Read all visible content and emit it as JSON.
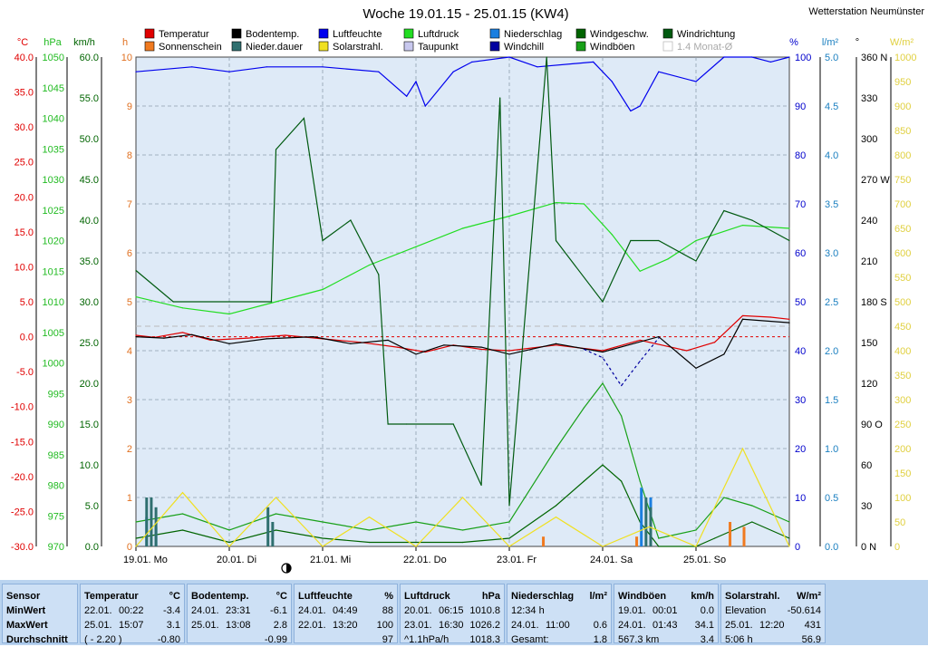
{
  "header": {
    "title": "Woche 19.01.15 - 25.01.15 (KW4)",
    "station": "Wetterstation Neumünster"
  },
  "legend": [
    {
      "label": "Temperatur",
      "color": "#e00000",
      "checked": true
    },
    {
      "label": "Bodentemp.",
      "color": "#000000",
      "checked": true
    },
    {
      "label": "Luftfeuchte",
      "color": "#0000ee",
      "checked": true
    },
    {
      "label": "Luftdruck",
      "color": "#22dd22",
      "checked": true
    },
    {
      "label": "Niederschlag",
      "color": "#1a7fe0",
      "checked": true
    },
    {
      "label": "Windgeschw.",
      "color": "#006400",
      "checked": true
    },
    {
      "label": "Windrichtung",
      "color": "#005a10",
      "checked": true
    },
    {
      "label": "Sonnenschein",
      "color": "#f07a20",
      "checked": true
    },
    {
      "label": "Nieder.dauer",
      "color": "#2f6f6f",
      "checked": true
    },
    {
      "label": "Solarstrahl.",
      "color": "#f0e020",
      "checked": true
    },
    {
      "label": "Taupunkt",
      "color": "#c8c8ee",
      "checked": true
    },
    {
      "label": "Windchill",
      "color": "#0000a0",
      "checked": true
    },
    {
      "label": "Windböen",
      "color": "#18a018",
      "checked": true
    },
    {
      "label": "1.4 Monat-Ø",
      "color": "#bbbbbb",
      "checked": false
    }
  ],
  "axes": {
    "left": [
      {
        "unit": "°C",
        "color": "#e00000",
        "ticks": [
          "40.0",
          "35.0",
          "30.0",
          "25.0",
          "20.0",
          "15.0",
          "10.0",
          "5.0",
          "0.0",
          "-5.0",
          "-10.0",
          "-15.0",
          "-20.0",
          "-25.0",
          "-30.0"
        ]
      },
      {
        "unit": "hPa",
        "color": "#22bb22",
        "ticks": [
          "1050",
          "1045",
          "1040",
          "1035",
          "1030",
          "1025",
          "1020",
          "1015",
          "1010",
          "1005",
          "1000",
          "995",
          "990",
          "985",
          "980",
          "975",
          "970"
        ]
      },
      {
        "unit": "km/h",
        "color": "#006400",
        "ticks": [
          "60.0",
          "55.0",
          "50.0",
          "45.0",
          "40.0",
          "35.0",
          "30.0",
          "25.0",
          "20.0",
          "15.0",
          "10.0",
          "5.0",
          "0.0"
        ]
      },
      {
        "unit": "h",
        "color": "#e07020",
        "ticks": [
          "10",
          "9",
          "8",
          "7",
          "6",
          "5",
          "4",
          "3",
          "2",
          "1",
          "0"
        ]
      }
    ],
    "right": [
      {
        "unit": "%",
        "color": "#0000cc",
        "ticks": [
          "100",
          "90",
          "80",
          "70",
          "60",
          "50",
          "40",
          "30",
          "20",
          "10",
          "0"
        ]
      },
      {
        "unit": "l/m²",
        "color": "#1a7fc0",
        "ticks": [
          "5.0",
          "4.5",
          "4.0",
          "3.5",
          "3.0",
          "2.5",
          "2.0",
          "1.5",
          "1.0",
          "0.5",
          "0.0"
        ]
      },
      {
        "unit": "°",
        "color": "#000000",
        "ticks": [
          "360 N",
          "330",
          "300",
          "270 W",
          "240",
          "210",
          "180 S",
          "150",
          "120",
          "90 O",
          "60",
          "30",
          "0 N"
        ]
      },
      {
        "unit": "W/m²",
        "color": "#e0d040",
        "ticks": [
          "1000",
          "950",
          "900",
          "850",
          "800",
          "750",
          "700",
          "650",
          "600",
          "550",
          "500",
          "450",
          "400",
          "350",
          "300",
          "250",
          "200",
          "150",
          "100",
          "50",
          "0"
        ]
      }
    ],
    "x_labels": [
      "19.01. Mo",
      "20.01. Di",
      "21.01. Mi",
      "22.01. Do",
      "23.01. Fr",
      "24.01. Sa",
      "25.01. So"
    ]
  },
  "chart_data": {
    "type": "line",
    "x": [
      "19.01. Mo",
      "20.01. Di",
      "21.01. Mi",
      "22.01. Do",
      "23.01. Fr",
      "24.01. Sa",
      "25.01. So"
    ],
    "series": [
      {
        "name": "Temperatur",
        "color": "#e00000",
        "unit": "°C",
        "points": [
          [
            0,
            0.2
          ],
          [
            0.2,
            -0.1
          ],
          [
            0.5,
            0.6
          ],
          [
            0.8,
            -0.5
          ],
          [
            1.2,
            -0.2
          ],
          [
            1.6,
            0.2
          ],
          [
            2.0,
            -0.3
          ],
          [
            2.4,
            -0.8
          ],
          [
            2.8,
            -1.5
          ],
          [
            3.1,
            -2.2
          ],
          [
            3.4,
            -1.2
          ],
          [
            3.7,
            -1.8
          ],
          [
            4.0,
            -2.0
          ],
          [
            4.5,
            -1.2
          ],
          [
            5.0,
            -2.0
          ],
          [
            5.4,
            -0.5
          ],
          [
            5.9,
            -2.0
          ],
          [
            6.2,
            -0.8
          ],
          [
            6.5,
            3.0
          ],
          [
            6.8,
            2.8
          ],
          [
            7.0,
            2.5
          ]
        ]
      },
      {
        "name": "Bodentemp.",
        "color": "#000000",
        "unit": "°C",
        "points": [
          [
            0,
            0.0
          ],
          [
            0.3,
            -0.2
          ],
          [
            0.6,
            0.3
          ],
          [
            1.0,
            -1.0
          ],
          [
            1.4,
            -0.3
          ],
          [
            1.9,
            0.0
          ],
          [
            2.3,
            -1.0
          ],
          [
            2.7,
            -0.5
          ],
          [
            3.0,
            -2.5
          ],
          [
            3.3,
            -1.2
          ],
          [
            3.7,
            -1.5
          ],
          [
            4.0,
            -2.5
          ],
          [
            4.5,
            -1.0
          ],
          [
            5.0,
            -2.2
          ],
          [
            5.6,
            0.0
          ],
          [
            6.0,
            -4.5
          ],
          [
            6.3,
            -2.5
          ],
          [
            6.5,
            2.5
          ],
          [
            7.0,
            2.0
          ]
        ]
      },
      {
        "name": "Taupunkt",
        "color": "#0000a0",
        "unit": "°C",
        "dashed": true,
        "points": [
          [
            4.8,
            -1.8
          ],
          [
            5.0,
            -3.0
          ],
          [
            5.2,
            -7.0
          ],
          [
            5.4,
            -3.5
          ],
          [
            5.6,
            -0.2
          ]
        ]
      },
      {
        "name": "Luftfeuchte",
        "color": "#0000ee",
        "unit": "%",
        "points": [
          [
            0,
            97
          ],
          [
            0.6,
            98
          ],
          [
            1.0,
            97
          ],
          [
            1.4,
            98
          ],
          [
            2.0,
            98
          ],
          [
            2.6,
            97
          ],
          [
            2.9,
            92
          ],
          [
            3.0,
            95
          ],
          [
            3.1,
            90
          ],
          [
            3.4,
            97
          ],
          [
            3.6,
            99
          ],
          [
            4.0,
            100
          ],
          [
            4.3,
            98
          ],
          [
            4.9,
            99
          ],
          [
            5.1,
            95
          ],
          [
            5.3,
            89
          ],
          [
            5.4,
            90
          ],
          [
            5.6,
            97
          ],
          [
            6.0,
            95
          ],
          [
            6.3,
            100
          ],
          [
            6.6,
            100
          ],
          [
            6.8,
            99
          ],
          [
            7.0,
            100
          ]
        ]
      },
      {
        "name": "Luftdruck",
        "color": "#22dd22",
        "unit": "hPa",
        "points": [
          [
            0,
            1010.8
          ],
          [
            0.5,
            1009
          ],
          [
            1.0,
            1008
          ],
          [
            1.5,
            1010
          ],
          [
            2.0,
            1012
          ],
          [
            2.5,
            1016
          ],
          [
            3.0,
            1019
          ],
          [
            3.5,
            1022
          ],
          [
            4.0,
            1024
          ],
          [
            4.5,
            1026.2
          ],
          [
            4.8,
            1026
          ],
          [
            5.1,
            1021
          ],
          [
            5.4,
            1015
          ],
          [
            5.7,
            1017
          ],
          [
            6.0,
            1020
          ],
          [
            6.5,
            1022.5
          ],
          [
            7.0,
            1022
          ]
        ]
      },
      {
        "name": "Windgeschw.",
        "color": "#006400",
        "unit": "km/h",
        "points": [
          [
            0,
            1
          ],
          [
            0.5,
            2
          ],
          [
            1.0,
            0.5
          ],
          [
            1.5,
            2
          ],
          [
            2.0,
            1
          ],
          [
            2.5,
            0.5
          ],
          [
            3.0,
            0.5
          ],
          [
            3.5,
            0.5
          ],
          [
            4.0,
            1
          ],
          [
            4.5,
            5
          ],
          [
            4.8,
            8
          ],
          [
            5.0,
            10
          ],
          [
            5.2,
            8
          ],
          [
            5.4,
            3
          ],
          [
            5.6,
            0
          ],
          [
            6.0,
            0
          ],
          [
            6.2,
            1
          ],
          [
            6.6,
            3
          ],
          [
            7.0,
            1
          ]
        ]
      },
      {
        "name": "Windböen",
        "color": "#18a018",
        "unit": "km/h",
        "points": [
          [
            0,
            3
          ],
          [
            0.5,
            4
          ],
          [
            1.0,
            2
          ],
          [
            1.5,
            4
          ],
          [
            2.0,
            3
          ],
          [
            2.5,
            2
          ],
          [
            3.0,
            3
          ],
          [
            3.5,
            2
          ],
          [
            4.0,
            3
          ],
          [
            4.5,
            12
          ],
          [
            4.8,
            17
          ],
          [
            5.0,
            20
          ],
          [
            5.2,
            16
          ],
          [
            5.4,
            8
          ],
          [
            5.6,
            1
          ],
          [
            6.0,
            2
          ],
          [
            6.3,
            6
          ],
          [
            6.6,
            5
          ],
          [
            7.0,
            3
          ]
        ]
      },
      {
        "name": "Windrichtung",
        "color": "#005a10",
        "unit": "°",
        "points": [
          [
            0,
            203
          ],
          [
            0.4,
            180
          ],
          [
            1.45,
            180
          ],
          [
            1.5,
            292
          ],
          [
            1.8,
            315
          ],
          [
            2.0,
            225
          ],
          [
            2.3,
            240
          ],
          [
            2.6,
            200
          ],
          [
            2.7,
            90
          ],
          [
            2.9,
            90
          ],
          [
            3.4,
            90
          ],
          [
            3.7,
            45
          ],
          [
            3.9,
            330
          ],
          [
            4.0,
            30
          ],
          [
            4.4,
            360
          ],
          [
            4.5,
            225
          ],
          [
            5.0,
            180
          ],
          [
            5.3,
            225
          ],
          [
            5.6,
            225
          ],
          [
            6.0,
            210
          ],
          [
            6.3,
            247
          ],
          [
            6.6,
            240
          ],
          [
            7.0,
            225
          ]
        ]
      },
      {
        "name": "Sonnenschein",
        "color": "#f07a20",
        "unit": "h",
        "points": [
          [
            4.35,
            0.2
          ],
          [
            5.35,
            0.2
          ],
          [
            6.35,
            0.5
          ],
          [
            6.5,
            0.4
          ]
        ]
      },
      {
        "name": "Niederschlag",
        "color": "#1a7fe0",
        "unit": "l/m²",
        "points": [
          [
            0.1,
            0.3
          ],
          [
            0.2,
            0.2
          ],
          [
            5.4,
            0.6
          ],
          [
            5.5,
            0.5
          ]
        ]
      },
      {
        "name": "Nieder.dauer",
        "color": "#2f6f6f",
        "unit": "h",
        "points": [
          [
            0.1,
            1.0
          ],
          [
            0.15,
            1.0
          ],
          [
            0.2,
            0.8
          ],
          [
            1.4,
            0.8
          ],
          [
            1.45,
            0.5
          ],
          [
            5.45,
            1.0
          ],
          [
            5.5,
            0.8
          ]
        ]
      },
      {
        "name": "Solarstrahl.",
        "color": "#f0e020",
        "unit": "W/m²",
        "points": [
          [
            0,
            0
          ],
          [
            0.5,
            110
          ],
          [
            1.0,
            0
          ],
          [
            1.5,
            100
          ],
          [
            2.0,
            0
          ],
          [
            2.5,
            60
          ],
          [
            3.0,
            0
          ],
          [
            3.5,
            100
          ],
          [
            4.0,
            0
          ],
          [
            4.5,
            60
          ],
          [
            5.0,
            0
          ],
          [
            5.5,
            40
          ],
          [
            6.0,
            0
          ],
          [
            6.5,
            200
          ],
          [
            7.0,
            0
          ]
        ]
      }
    ]
  },
  "stats": {
    "sensor": {
      "header": "Sensor",
      "rows": [
        "MinWert",
        "MaxWert",
        "Durchschnitt"
      ]
    },
    "columns": [
      {
        "title": "Temperatur",
        "unit": "°C",
        "rows": [
          [
            "22.01.",
            "00:22",
            "-3.4"
          ],
          [
            "25.01.",
            "15:07",
            "3.1"
          ],
          [
            "( - 2.20 )",
            "",
            "-0.80"
          ]
        ]
      },
      {
        "title": "Bodentemp.",
        "unit": "°C",
        "rows": [
          [
            "24.01.",
            "23:31",
            "-6.1"
          ],
          [
            "25.01.",
            "13:08",
            "2.8"
          ],
          [
            "",
            "",
            "-0.99"
          ]
        ]
      },
      {
        "title": "Luftfeuchte",
        "unit": "%",
        "rows": [
          [
            "24.01.",
            "04:49",
            "88"
          ],
          [
            "22.01.",
            "13:20",
            "100"
          ],
          [
            "",
            "",
            "97"
          ]
        ]
      },
      {
        "title": "Luftdruck",
        "unit": "hPa",
        "rows": [
          [
            "20.01.",
            "06:15",
            "1010.8"
          ],
          [
            "23.01.",
            "16:30",
            "1026.2"
          ],
          [
            "^1.1hPa/h",
            "",
            "1018.3"
          ]
        ]
      },
      {
        "title": "Niederschlag",
        "unit": "l/m²",
        "rows": [
          [
            "12:34 h",
            "",
            ""
          ],
          [
            "24.01.",
            "11:00",
            "0.6"
          ],
          [
            "Gesamt:",
            "",
            "1.8"
          ]
        ]
      },
      {
        "title": "Windböen",
        "unit": "km/h",
        "rows": [
          [
            "19.01.",
            "00:01",
            "0.0"
          ],
          [
            "24.01.",
            "01:43",
            "34.1"
          ],
          [
            "567.3 km",
            "",
            "3.4"
          ]
        ]
      },
      {
        "title": "Solarstrahl.",
        "unit": "W/m²",
        "rows": [
          [
            "Elevation",
            "",
            "-50.614"
          ],
          [
            "25.01.",
            "12:20",
            "431"
          ],
          [
            "5:06 h",
            "",
            "56.9"
          ]
        ]
      }
    ]
  }
}
